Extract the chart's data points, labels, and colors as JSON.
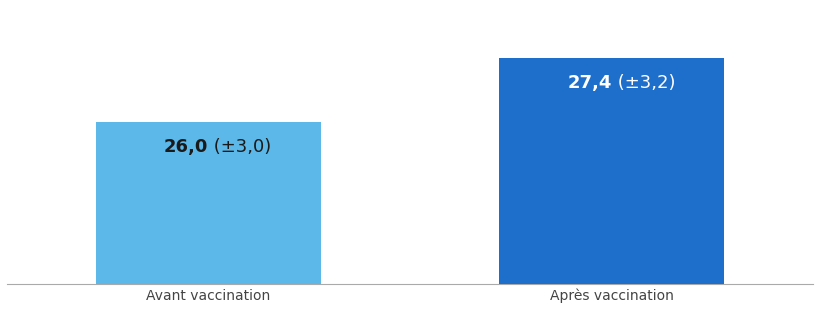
{
  "categories": [
    "Avant vaccination",
    "Après vaccination"
  ],
  "values": [
    26.0,
    27.4
  ],
  "bar_colors": [
    "#5BB8E8",
    "#1E6FCC"
  ],
  "label_colors": [
    "#1a1a1a",
    "#ffffff"
  ],
  "label_bold_parts": [
    "26,0",
    "27,4"
  ],
  "label_normal_parts": [
    " (±3,0)",
    " (±3,2)"
  ],
  "ylim": [
    22.5,
    28.5
  ],
  "background_color": "#ffffff",
  "bar_width": 0.28,
  "x_positions": [
    0.25,
    0.75
  ],
  "label_fontsize": 13,
  "tick_fontsize": 10,
  "xlim": [
    0.0,
    1.0
  ]
}
